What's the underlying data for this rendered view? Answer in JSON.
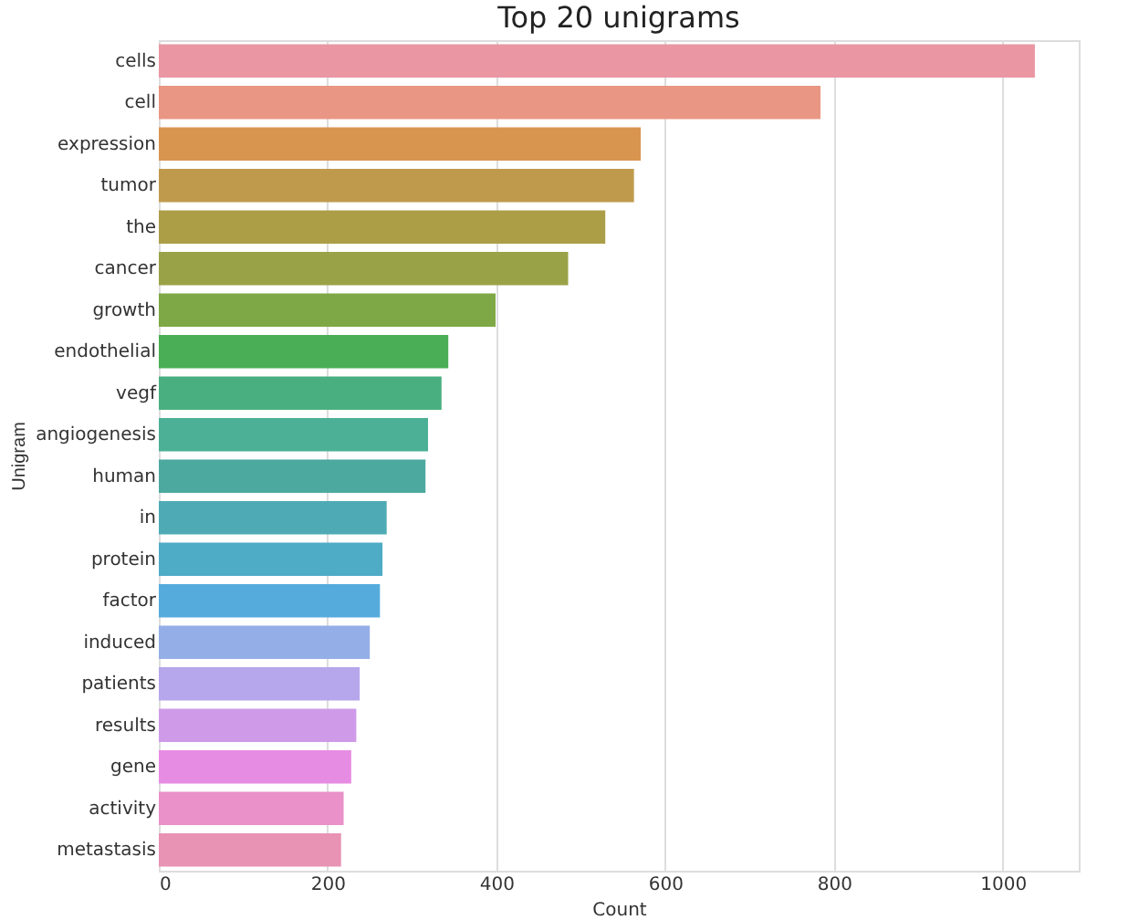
{
  "chart_data": {
    "type": "bar",
    "orientation": "horizontal",
    "title": "Top 20 unigrams",
    "xlabel": "Count",
    "ylabel": "Unigram",
    "categories": [
      "cells",
      "cell",
      "expression",
      "tumor",
      "the",
      "cancer",
      "growth",
      "endothelial",
      "vegf",
      "angiogenesis",
      "human",
      "in",
      "protein",
      "factor",
      "induced",
      "patients",
      "results",
      "gene",
      "activity",
      "metastasis"
    ],
    "values": [
      1038,
      784,
      571,
      563,
      529,
      485,
      399,
      343,
      335,
      319,
      316,
      270,
      265,
      262,
      250,
      238,
      234,
      228,
      219,
      216
    ],
    "colors": [
      "#ea96a3",
      "#e99684",
      "#d89550",
      "#c09a4c",
      "#ab9e47",
      "#9aa247",
      "#7ea845",
      "#49ae55",
      "#4aaf80",
      "#4bb096",
      "#4ca9a0",
      "#4eabb5",
      "#4facc6",
      "#55abdc",
      "#94aee8",
      "#b6a6ec",
      "#cf9be8",
      "#e78ce3",
      "#e991c8",
      "#e893b4"
    ],
    "xlim": [
      0,
      1090
    ],
    "xticks": [
      0,
      200,
      400,
      600,
      800,
      1000
    ],
    "grid": "x",
    "legend": false
  }
}
